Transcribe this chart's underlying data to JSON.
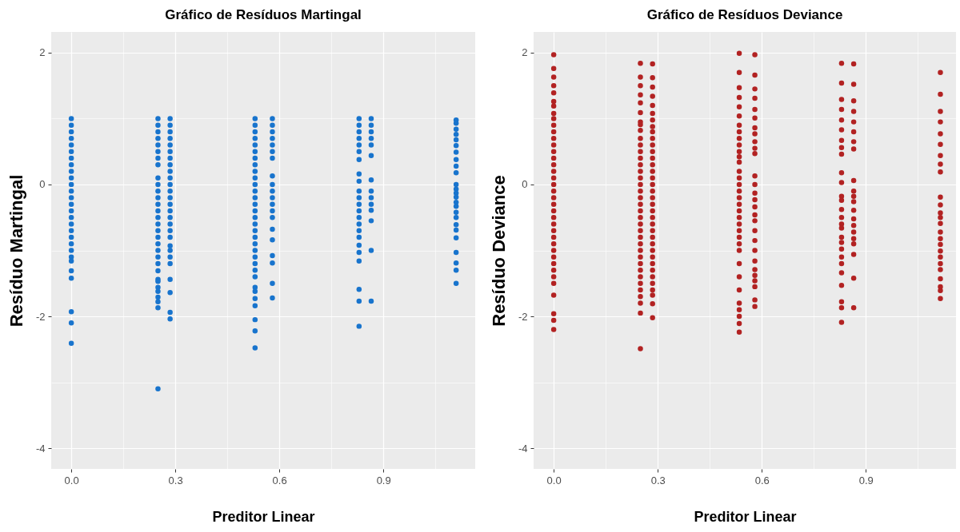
{
  "chart_data": [
    {
      "type": "scatter",
      "title": "Gráfico de Resíduos Martingal",
      "xlabel": "Preditor Linear",
      "ylabel": "Resíduo Martingal",
      "xlim": [
        -0.058,
        1.165
      ],
      "ylim": [
        -4.315,
        2.315
      ],
      "xticks": [
        {
          "value": 0,
          "label": "0.0"
        },
        {
          "value": 0.15,
          "label": null
        },
        {
          "value": 0.3,
          "label": "0.3"
        },
        {
          "value": 0.45,
          "label": null
        },
        {
          "value": 0.6,
          "label": "0.6"
        },
        {
          "value": 0.75,
          "label": null
        },
        {
          "value": 0.9,
          "label": "0.9"
        },
        {
          "value": 1.05,
          "label": null
        }
      ],
      "yticks": [
        -4,
        {
          "value": -3,
          "label": null
        },
        -2,
        {
          "value": -1,
          "label": null
        },
        0,
        {
          "value": 1,
          "label": null
        },
        2
      ],
      "grid": true,
      "marker": "circle",
      "series": [
        {
          "color": "#1874cd",
          "x": [
            0,
            0,
            0,
            0,
            0,
            0,
            0,
            0,
            0,
            0,
            0,
            0,
            0,
            0,
            0,
            0,
            0,
            0,
            0,
            0,
            0,
            0,
            0,
            0,
            0,
            0,
            0,
            0,
            0.25,
            0.25,
            0.25,
            0.25,
            0.25,
            0.25,
            0.25,
            0.25,
            0.25,
            0.25,
            0.25,
            0.25,
            0.25,
            0.25,
            0.25,
            0.25,
            0.25,
            0.25,
            0.25,
            0.25,
            0.25,
            0.25,
            0.25,
            0.25,
            0.25,
            0.25,
            0.25,
            0.25,
            0.25,
            0.25,
            0.25,
            0.285,
            0.285,
            0.285,
            0.285,
            0.285,
            0.285,
            0.285,
            0.285,
            0.285,
            0.285,
            0.285,
            0.285,
            0.285,
            0.285,
            0.285,
            0.285,
            0.285,
            0.285,
            0.285,
            0.285,
            0.285,
            0.285,
            0.285,
            0.285,
            0.285,
            0.285,
            0.285,
            0.53,
            0.53,
            0.53,
            0.53,
            0.53,
            0.53,
            0.53,
            0.53,
            0.53,
            0.53,
            0.53,
            0.53,
            0.53,
            0.53,
            0.53,
            0.53,
            0.53,
            0.53,
            0.53,
            0.53,
            0.53,
            0.53,
            0.53,
            0.53,
            0.53,
            0.53,
            0.53,
            0.53,
            0.53,
            0.53,
            0.53,
            0.53,
            0.58,
            0.58,
            0.58,
            0.58,
            0.58,
            0.58,
            0.58,
            0.58,
            0.58,
            0.58,
            0.58,
            0.58,
            0.58,
            0.58,
            0.58,
            0.58,
            0.58,
            0.58,
            0.58,
            0.58,
            0.83,
            0.83,
            0.83,
            0.83,
            0.83,
            0.83,
            0.83,
            0.83,
            0.83,
            0.83,
            0.83,
            0.83,
            0.83,
            0.83,
            0.83,
            0.83,
            0.83,
            0.83,
            0.83,
            0.83,
            0.83,
            0.83,
            0.83,
            0.865,
            0.865,
            0.865,
            0.865,
            0.865,
            0.865,
            0.865,
            0.865,
            0.865,
            0.865,
            0.865,
            0.865,
            0.865,
            0.865,
            1.11,
            1.11,
            1.11,
            1.11,
            1.11,
            1.11,
            1.11,
            1.11,
            1.11,
            1.11,
            1.11,
            1.11,
            1.11,
            1.11,
            1.11,
            1.11,
            1.11,
            1.11,
            1.11,
            1.11,
            1.11,
            1.11,
            1.11,
            1.11,
            1.11
          ],
          "values": [
            1.0,
            0.9,
            0.8,
            0.7,
            0.6,
            0.5,
            0.4,
            0.3,
            0.2,
            0.1,
            0,
            -0.1,
            -0.2,
            -0.3,
            -0.4,
            -0.5,
            -0.6,
            -0.7,
            -0.8,
            -0.9,
            -1.0,
            -1.1,
            -1.16,
            -1.31,
            -1.42,
            -1.93,
            -2.1,
            -2.41,
            1.0,
            0.9,
            0.8,
            0.7,
            0.6,
            0.5,
            0.4,
            0.3,
            0.1,
            0,
            -0.1,
            -0.2,
            -0.3,
            -0.4,
            -0.5,
            -0.6,
            -0.7,
            -0.8,
            -0.9,
            -1.0,
            -1.1,
            -1.2,
            -1.31,
            -1.44,
            -1.47,
            -1.56,
            -1.62,
            -1.71,
            -1.78,
            -1.87,
            -3.1,
            1.0,
            0.9,
            0.8,
            0.7,
            0.6,
            0.5,
            0.4,
            0.3,
            0.2,
            0.1,
            0,
            -0.1,
            -0.2,
            -0.3,
            -0.4,
            -0.5,
            -0.6,
            -0.7,
            -0.8,
            -0.93,
            -1.0,
            -1.1,
            -1.2,
            -1.44,
            -1.64,
            -1.94,
            -2.04,
            1.0,
            0.9,
            0.8,
            0.7,
            0.6,
            0.5,
            0.4,
            0.3,
            0.2,
            0.1,
            0,
            -0.1,
            -0.2,
            -0.3,
            -0.4,
            -0.5,
            -0.6,
            -0.7,
            -0.8,
            -0.9,
            -1.0,
            -1.1,
            -1.2,
            -1.3,
            -1.4,
            -1.56,
            -1.62,
            -1.73,
            -1.84,
            -2.05,
            -2.22,
            -2.48,
            1.0,
            0.9,
            0.8,
            0.7,
            0.6,
            0.5,
            0.4,
            0.13,
            0.0,
            -0.1,
            -0.2,
            -0.3,
            -0.4,
            -0.5,
            -0.68,
            -0.84,
            -1.08,
            -1.19,
            -1.5,
            -1.72,
            1.0,
            0.9,
            0.8,
            0.7,
            0.6,
            0.5,
            0.38,
            0.16,
            0.05,
            -0.1,
            -0.2,
            -0.3,
            -0.4,
            -0.5,
            -0.6,
            -0.7,
            -0.8,
            -0.92,
            -1.03,
            -1.16,
            -1.59,
            -1.77,
            -2.15,
            1.0,
            0.9,
            0.8,
            0.7,
            0.6,
            0.44,
            0.07,
            -0.1,
            -0.2,
            -0.3,
            -0.39,
            -0.55,
            -1.0,
            -1.77,
            0.98,
            0.93,
            0.84,
            0.76,
            0.68,
            0.59,
            0.49,
            0.38,
            0.28,
            0.18,
            0.0,
            -0.07,
            -0.13,
            -0.19,
            -0.27,
            -0.33,
            -0.42,
            -0.5,
            -0.61,
            -0.69,
            -0.81,
            -1.03,
            -1.19,
            -1.3,
            -1.5
          ]
        }
      ]
    },
    {
      "type": "scatter",
      "title": "Gráfico de Resíduos Deviance",
      "xlabel": "Preditor Linear",
      "ylabel": "Resíduo Deviance",
      "xlim": [
        -0.058,
        1.16
      ],
      "ylim": [
        -4.315,
        2.315
      ],
      "xticks": [
        {
          "value": 0,
          "label": "0.0"
        },
        {
          "value": 0.15,
          "label": null
        },
        {
          "value": 0.3,
          "label": "0.3"
        },
        {
          "value": 0.45,
          "label": null
        },
        {
          "value": 0.6,
          "label": "0.6"
        },
        {
          "value": 0.75,
          "label": null
        },
        {
          "value": 0.9,
          "label": "0.9"
        },
        {
          "value": 1.05,
          "label": null
        }
      ],
      "yticks": [
        -4,
        {
          "value": -3,
          "label": null
        },
        -2,
        {
          "value": -1,
          "label": null
        },
        0,
        {
          "value": 1,
          "label": null
        },
        2
      ],
      "grid": true,
      "marker": "circle",
      "series": [
        {
          "color": "#b22222",
          "x": [
            0,
            0,
            0,
            0,
            0,
            0,
            0,
            0,
            0,
            0,
            0,
            0,
            0,
            0,
            0,
            0,
            0,
            0,
            0,
            0,
            0,
            0,
            0,
            0,
            0,
            0,
            0,
            0,
            0,
            0,
            0,
            0,
            0,
            0,
            0,
            0,
            0,
            0,
            0.25,
            0.25,
            0.25,
            0.25,
            0.25,
            0.25,
            0.25,
            0.25,
            0.25,
            0.25,
            0.25,
            0.25,
            0.25,
            0.25,
            0.25,
            0.25,
            0.25,
            0.25,
            0.25,
            0.25,
            0.25,
            0.25,
            0.25,
            0.25,
            0.25,
            0.25,
            0.25,
            0.25,
            0.25,
            0.25,
            0.25,
            0.25,
            0.25,
            0.25,
            0.25,
            0.25,
            0.25,
            0.285,
            0.285,
            0.285,
            0.285,
            0.285,
            0.285,
            0.285,
            0.285,
            0.285,
            0.285,
            0.285,
            0.285,
            0.285,
            0.285,
            0.285,
            0.285,
            0.285,
            0.285,
            0.285,
            0.285,
            0.285,
            0.285,
            0.285,
            0.285,
            0.285,
            0.285,
            0.285,
            0.285,
            0.285,
            0.285,
            0.285,
            0.285,
            0.285,
            0.285,
            0.285,
            0.285,
            0.535,
            0.535,
            0.535,
            0.535,
            0.535,
            0.535,
            0.535,
            0.535,
            0.535,
            0.535,
            0.535,
            0.535,
            0.535,
            0.535,
            0.535,
            0.535,
            0.535,
            0.535,
            0.535,
            0.535,
            0.535,
            0.535,
            0.535,
            0.535,
            0.535,
            0.535,
            0.535,
            0.535,
            0.535,
            0.535,
            0.535,
            0.535,
            0.535,
            0.535,
            0.58,
            0.58,
            0.58,
            0.58,
            0.58,
            0.58,
            0.58,
            0.58,
            0.58,
            0.58,
            0.58,
            0.58,
            0.58,
            0.58,
            0.58,
            0.58,
            0.58,
            0.58,
            0.58,
            0.58,
            0.58,
            0.58,
            0.58,
            0.58,
            0.58,
            0.58,
            0.58,
            0.58,
            0.83,
            0.83,
            0.83,
            0.83,
            0.83,
            0.83,
            0.83,
            0.83,
            0.83,
            0.83,
            0.83,
            0.83,
            0.83,
            0.83,
            0.83,
            0.83,
            0.83,
            0.83,
            0.83,
            0.83,
            0.83,
            0.83,
            0.83,
            0.83,
            0.83,
            0.83,
            0.83,
            0.865,
            0.865,
            0.865,
            0.865,
            0.865,
            0.865,
            0.865,
            0.865,
            0.865,
            0.865,
            0.865,
            0.865,
            0.865,
            0.865,
            0.865,
            0.865,
            0.865,
            0.865,
            0.865,
            0.865,
            0.865,
            1.115,
            1.115,
            1.115,
            1.115,
            1.115,
            1.115,
            1.115,
            1.115,
            1.115,
            1.115,
            1.115,
            1.115,
            1.115,
            1.115,
            1.115,
            1.115,
            1.115,
            1.115,
            1.115,
            1.115,
            1.115,
            1.115,
            1.115,
            1.115,
            1.115
          ],
          "values": [
            1.97,
            1.76,
            1.63,
            1.5,
            1.39,
            1.26,
            1.19,
            1.08,
            1.0,
            0.9,
            0.8,
            0.7,
            0.6,
            0.5,
            0.4,
            0.3,
            0.2,
            0.1,
            0,
            -0.1,
            -0.2,
            -0.3,
            -0.4,
            -0.5,
            -0.6,
            -0.7,
            -0.8,
            -0.9,
            -1.0,
            -1.1,
            -1.2,
            -1.3,
            -1.4,
            -1.5,
            -1.68,
            -1.96,
            -2.06,
            -2.2,
            1.84,
            1.63,
            1.5,
            1.36,
            1.24,
            1.09,
            0.95,
            0.91,
            0.82,
            0.7,
            0.6,
            0.5,
            0.4,
            0.3,
            0.2,
            0.1,
            0,
            -0.1,
            -0.2,
            -0.3,
            -0.4,
            -0.5,
            -0.6,
            -0.7,
            -0.8,
            -0.9,
            -1.0,
            -1.1,
            -1.2,
            -1.3,
            -1.4,
            -1.5,
            -1.6,
            -1.7,
            -1.8,
            -1.95,
            -2.49,
            1.83,
            1.62,
            1.48,
            1.34,
            1.2,
            1.08,
            0.98,
            0.88,
            0.8,
            0.7,
            0.6,
            0.5,
            0.4,
            0.3,
            0.2,
            0.1,
            0,
            -0.1,
            -0.2,
            -0.3,
            -0.4,
            -0.5,
            -0.6,
            -0.7,
            -0.8,
            -0.9,
            -1.0,
            -1.1,
            -1.2,
            -1.3,
            -1.4,
            -1.5,
            -1.6,
            -1.68,
            -1.81,
            -2.02,
            1.99,
            1.7,
            1.47,
            1.32,
            1.18,
            1.04,
            0.9,
            0.8,
            0.7,
            0.6,
            0.5,
            0.42,
            0.34,
            0.2,
            0.1,
            0,
            -0.1,
            -0.2,
            -0.3,
            -0.4,
            -0.5,
            -0.6,
            -0.7,
            -0.8,
            -0.9,
            -1.0,
            -1.2,
            -1.4,
            -1.6,
            -1.8,
            -1.9,
            -2.0,
            -2.11,
            -2.24,
            1.97,
            1.66,
            1.45,
            1.31,
            1.14,
            1.01,
            0.86,
            0.77,
            0.65,
            0.55,
            0.47,
            0.13,
            0,
            -0.13,
            -0.23,
            -0.34,
            -0.46,
            -0.55,
            -0.7,
            -0.85,
            -1.0,
            -1.16,
            -1.29,
            -1.38,
            -1.46,
            -1.55,
            -1.75,
            -1.85,
            1.84,
            1.54,
            1.29,
            1.14,
            0.98,
            0.83,
            0.67,
            0.56,
            0.46,
            0.18,
            0.03,
            -0.18,
            -0.24,
            -0.38,
            -0.5,
            -0.6,
            -0.66,
            -0.8,
            -0.88,
            -0.98,
            -1.1,
            -1.2,
            -1.34,
            -1.53,
            -1.78,
            -1.87,
            -2.09,
            1.83,
            1.52,
            1.27,
            1.11,
            0.95,
            0.8,
            0.65,
            0.54,
            0.06,
            -0.1,
            -0.18,
            -0.26,
            -0.39,
            -0.52,
            -0.62,
            -0.72,
            -0.82,
            -0.9,
            -1.06,
            -1.42,
            -1.87,
            1.7,
            1.37,
            1.11,
            0.95,
            0.77,
            0.61,
            0.44,
            0.31,
            0.19,
            -0.19,
            -0.31,
            -0.43,
            -0.5,
            -0.59,
            -0.72,
            -0.82,
            -0.91,
            -1.01,
            -1.1,
            -1.2,
            -1.29,
            -1.43,
            -1.55,
            -1.61,
            -1.73
          ]
        }
      ]
    }
  ]
}
